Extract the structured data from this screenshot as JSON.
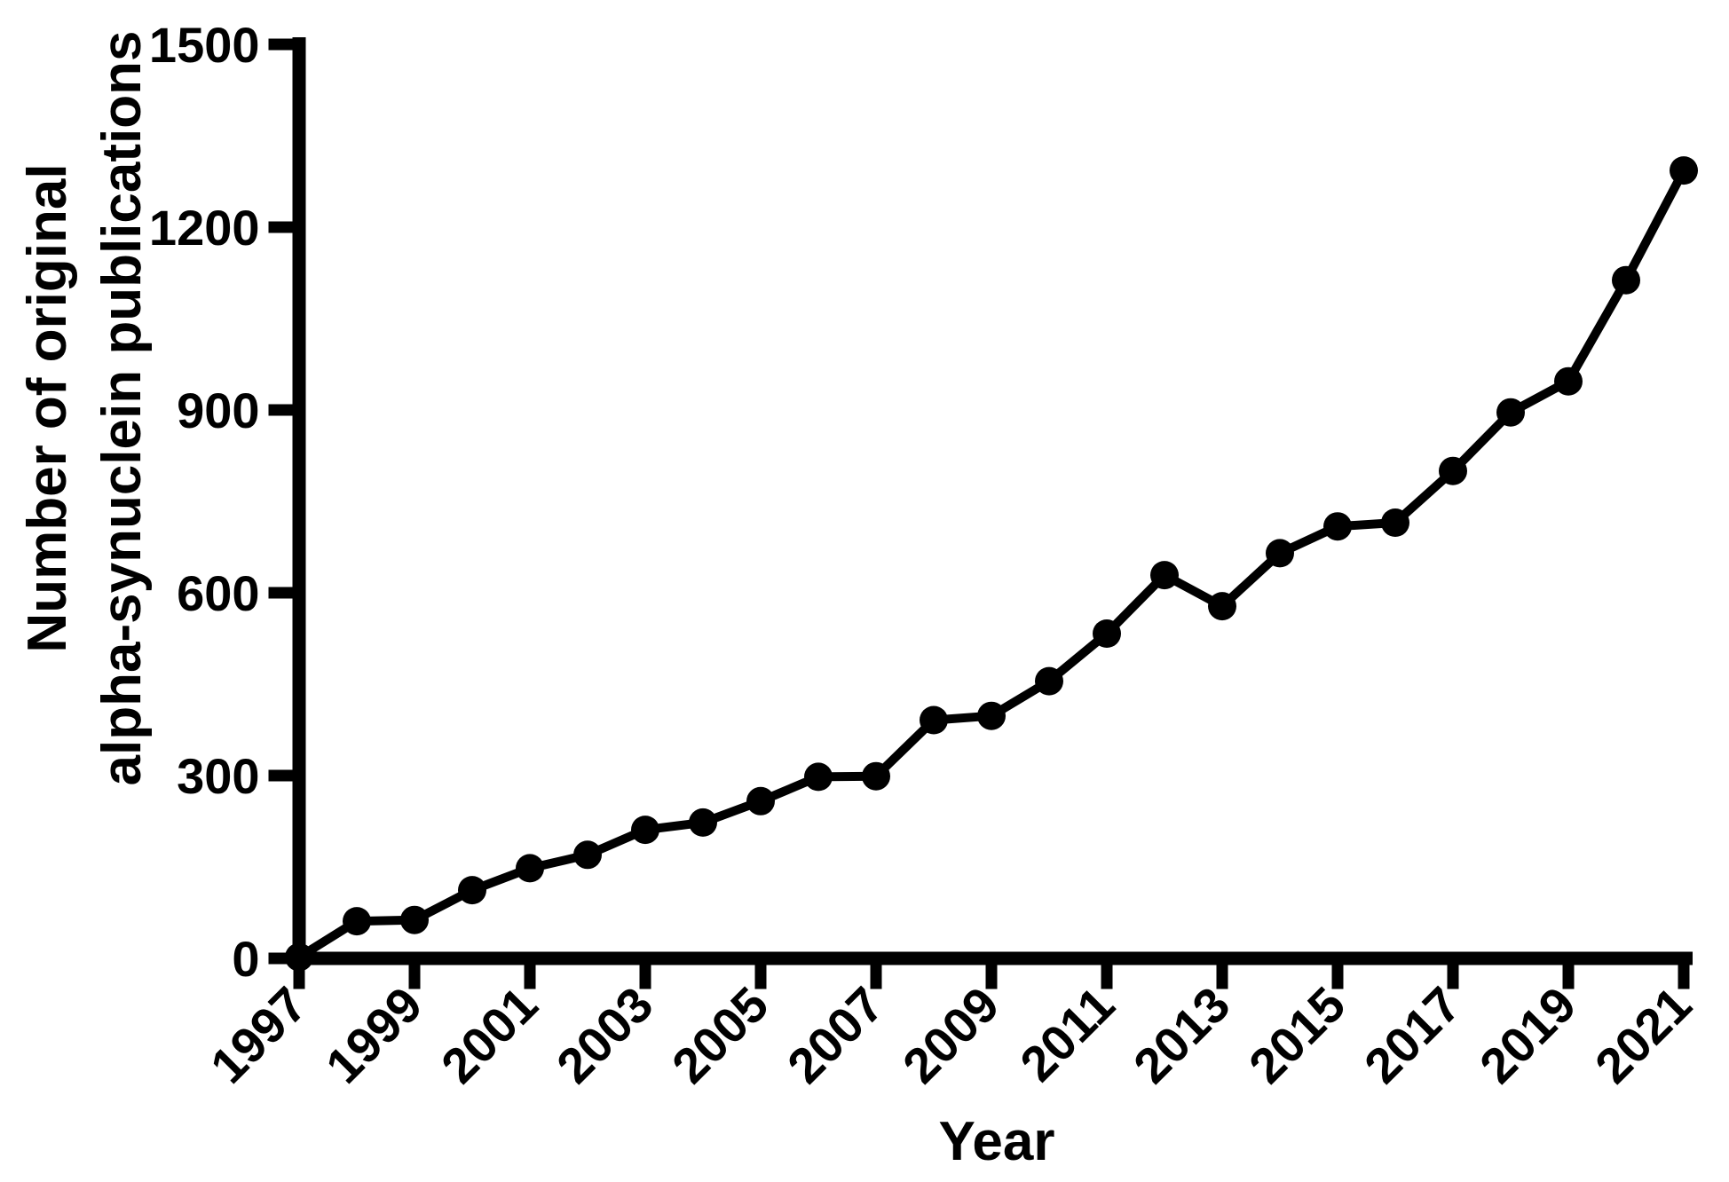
{
  "page": {
    "background": "#ffffff",
    "ink_color": "#000000"
  },
  "chart_data": {
    "type": "line",
    "title": "",
    "xlabel": "Year",
    "ylabel": "Number of original alpha-synuclein publications",
    "ylabel_lines": [
      "Number of original",
      "alpha-synuclein publications"
    ],
    "series": [
      {
        "name": "original alpha-synuclein publications",
        "color": "#000000",
        "marker": "filled-circle",
        "x": [
          1997,
          1998,
          1999,
          2000,
          2001,
          2002,
          2003,
          2004,
          2005,
          2006,
          2007,
          2008,
          2009,
          2010,
          2011,
          2012,
          2013,
          2014,
          2015,
          2016,
          2017,
          2018,
          2019,
          2020,
          2021
        ],
        "values": [
          2,
          61,
          63,
          112,
          148,
          170,
          211,
          223,
          258,
          298,
          299,
          391,
          398,
          455,
          533,
          629,
          578,
          665,
          709,
          715,
          800,
          896,
          947,
          1113,
          1293
        ]
      }
    ],
    "xlim": [
      1997,
      2021
    ],
    "ylim": [
      0,
      1500
    ],
    "x_tick_labels": [
      "1997",
      "1999",
      "2001",
      "2003",
      "2005",
      "2007",
      "2009",
      "2011",
      "2013",
      "2015",
      "2017",
      "2019",
      "2021"
    ],
    "x_tick_years": [
      1997,
      1999,
      2001,
      2003,
      2005,
      2007,
      2009,
      2011,
      2013,
      2015,
      2017,
      2019,
      2021
    ],
    "y_ticks": [
      0,
      300,
      600,
      900,
      1200,
      1500
    ],
    "y_tick_labels": [
      "0",
      "300",
      "600",
      "900",
      "1200",
      "1500"
    ],
    "grid": false,
    "legend_position": "none",
    "x_tick_label_rotation_deg": -45
  }
}
